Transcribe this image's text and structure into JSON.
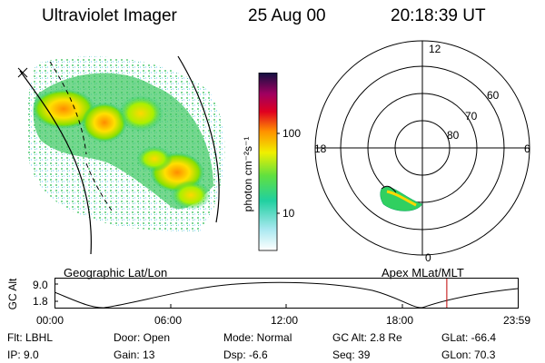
{
  "header": {
    "title": "Ultraviolet Imager",
    "date": "25 Aug 00",
    "time": "20:18:39 UT"
  },
  "colorbar": {
    "unit_label": "photon cm⁻²s⁻¹",
    "tick_100": "100",
    "tick_10": "10"
  },
  "polar_plot": {
    "label_12": "12",
    "label_18": "18",
    "label_6": "6",
    "label_0": "0",
    "lat_60": "60",
    "lat_70": "70",
    "lat_80": "80"
  },
  "labels": {
    "geo": "Geographic Lat/Lon",
    "apex": "Apex MLat/MLT"
  },
  "altitude_plot": {
    "axis_label": "GC Alt",
    "y_top": "9.0",
    "y_bottom": "1.8",
    "ticks": [
      "00:00",
      "06:00",
      "12:00",
      "18:00",
      "23:59"
    ],
    "current_marker_hour": 20.31
  },
  "status": {
    "filt": "Flt:  LBHL",
    "ip": "IP:  9.0",
    "door": "Door:  Open",
    "gain": "Gain:  13",
    "mode": "Mode:  Normal",
    "dsp": "Dsp:     -6.6",
    "gc_alt": "GC Alt:  2.8 Re",
    "seq": "Seq:  39",
    "glat": "GLat:  -66.4",
    "glon": "GLon:  70.3"
  },
  "colors": {
    "aurora_low": "#00c870",
    "aurora_mid": "#ffe000",
    "aurora_high": "#ff7000",
    "marker": "#c00000"
  }
}
